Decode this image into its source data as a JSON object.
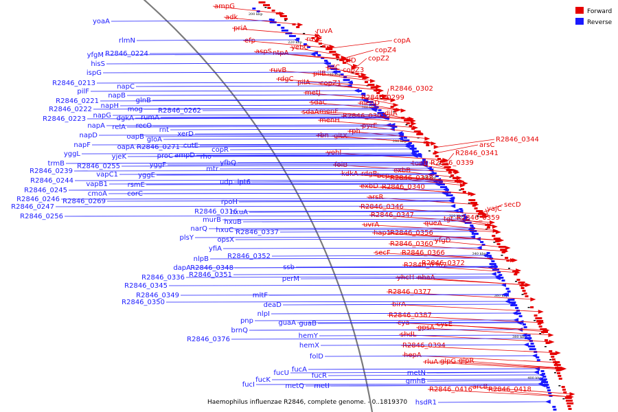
{
  "caption": "Haemophilus influenzae R2846, complete genome. - 0..1819370",
  "legend": [
    {
      "label": "Forward",
      "color": "#e60000"
    },
    {
      "label": "Reverse",
      "color": "#1a1aff"
    }
  ],
  "colors": {
    "forward": "#e60000",
    "reverse": "#1a1aff",
    "backbone": "#808080"
  },
  "ticks": [
    "200 kbp",
    "220 kbp",
    "240 kbp",
    "260 kbp",
    "280 kbp",
    "300 kbp",
    "320 kbp",
    "340 kbp",
    "360 kbp",
    "380 kbp",
    "400 kbp"
  ],
  "forward_genes": [
    "ampG",
    "adk",
    "priA",
    "efp",
    "aspS",
    "ntpA",
    "yebC",
    "ruvA",
    "ruvC",
    "copA",
    "copZ4",
    "copZ2",
    "pilD",
    "pilC",
    "pilB",
    "copZ3",
    "ruvB",
    "rdgC",
    "pilA",
    "copZ1",
    "metJ",
    "R2846_0302",
    "R2846_0299",
    "menD",
    "sdaC",
    "sdaA",
    "menF",
    "menH",
    "R2846_0301",
    "djlA",
    "pyrE",
    "rph",
    "gltX",
    "rbn",
    "yohI",
    "R2846_0344",
    "arsC",
    "R2846_0341",
    "tonB",
    "R2846_0339",
    "exbB",
    "folB",
    "kdkA",
    "rdgB",
    "bcp",
    "R2846_0338",
    "exbD",
    "R2846_0340",
    "arsR",
    "R2846_0346",
    "R2846_0347",
    "secD",
    "yajC",
    "tgt",
    "R2846_0359",
    "queA",
    "uvrA",
    "hap1",
    "R2846_0356",
    "yfgD",
    "R2846_0360",
    "secF",
    "R2846_0366",
    "R2846_0367",
    "R2846_0372",
    "yhcH",
    "nhaA",
    "R2846_0377",
    "birA",
    "R2846_0387",
    "cya",
    "gpsA",
    "cysE",
    "shdL",
    "R2846_0394",
    "hepA",
    "rluA",
    "glpG",
    "glpR",
    "R2846_0416",
    "arcB",
    "R2846_0418"
  ],
  "reverse_genes": [
    "yoaA",
    "rlmN",
    "yfgM",
    "R2846_0224",
    "hisS",
    "ispG",
    "R2846_0213",
    "pilF",
    "napC",
    "napB",
    "glnB",
    "R2846_0221",
    "napH",
    "mog",
    "R2846_0222",
    "R2846_0223",
    "rumA",
    "R2846_0262",
    "napG",
    "dgkA",
    "recO",
    "napA",
    "relA",
    "rnt",
    "napD",
    "oapB",
    "gloA",
    "xerD",
    "napF",
    "oapA",
    "R2846_0271",
    "cutE",
    "yggL",
    "yjeK",
    "proC",
    "ampD",
    "trmB",
    "R2846_0255",
    "yggF",
    "R2846_0239",
    "vapC1",
    "yggE",
    "R2846_0244",
    "vapB1",
    "rsmE",
    "R2846_0245",
    "cmoA",
    "corC",
    "R2846_0246",
    "R2846_0269",
    "R2846_0247",
    "R2846_0256",
    "copR",
    "rho",
    "mtr",
    "yfbQ",
    "udp",
    "lpt6",
    "rpoH",
    "R2846_0316",
    "hxuA",
    "murB",
    "hxuB",
    "narQ",
    "hxuC",
    "plsY",
    "opsX",
    "R2846_0337",
    "yfiA",
    "nlpB",
    "R2846_0352",
    "dapA",
    "R2846_0348",
    "R2846_0336",
    "R2846_0351",
    "R2846_0345",
    "R2846_0349",
    "R2846_0350",
    "ssb",
    "perM",
    "mltF",
    "deaD",
    "nlpI",
    "pnp",
    "guaA",
    "guaB",
    "brnQ",
    "R2846_0376",
    "hemY",
    "hemX",
    "folD",
    "fucA",
    "fucU",
    "fucR",
    "fucK",
    "fucI",
    "metQ",
    "metI",
    "metN",
    "gmhB",
    "hsdR1"
  ]
}
